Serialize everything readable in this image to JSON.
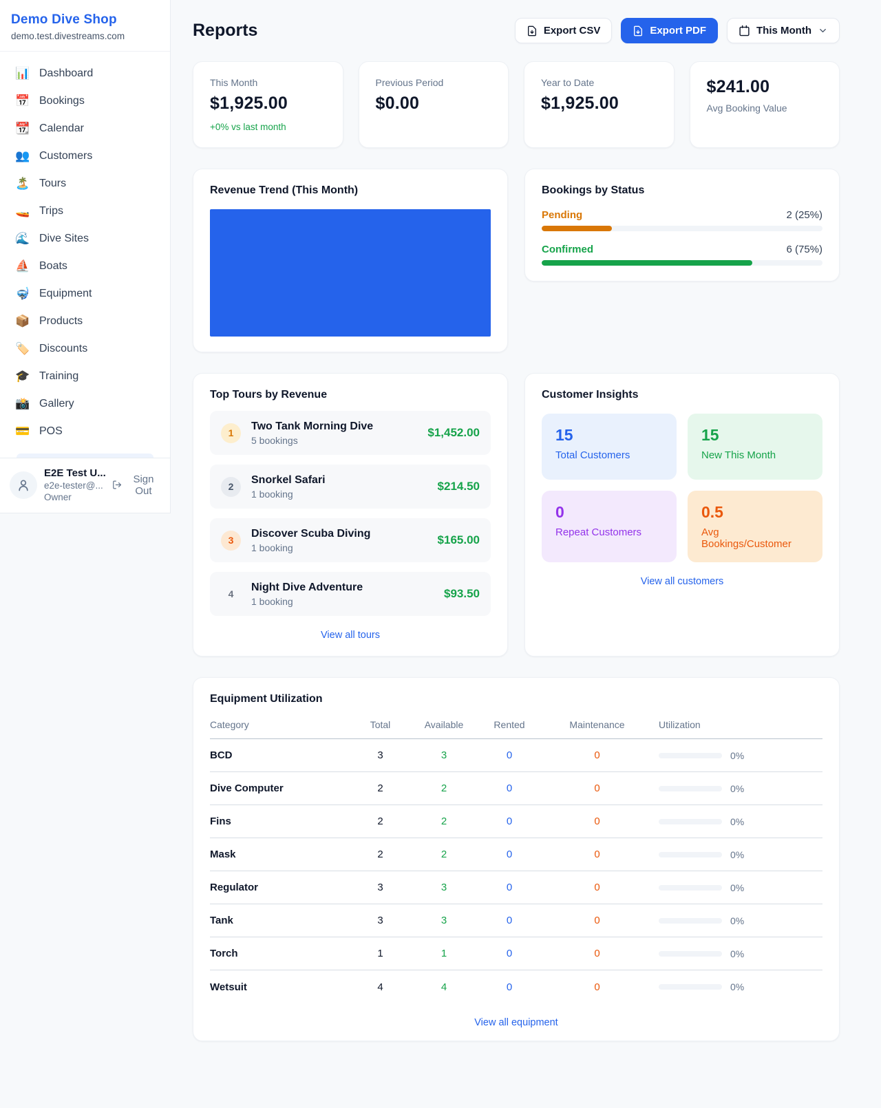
{
  "sidebar": {
    "shop_name": "Demo Dive Shop",
    "shop_domain": "demo.test.divestreams.com",
    "items": [
      {
        "icon": "📊",
        "label": "Dashboard"
      },
      {
        "icon": "📅",
        "label": "Bookings"
      },
      {
        "icon": "📆",
        "label": "Calendar"
      },
      {
        "icon": "👥",
        "label": "Customers"
      },
      {
        "icon": "🏝️",
        "label": "Tours"
      },
      {
        "icon": "🚤",
        "label": "Trips"
      },
      {
        "icon": "🌊",
        "label": "Dive Sites"
      },
      {
        "icon": "⛵",
        "label": "Boats"
      },
      {
        "icon": "🤿",
        "label": "Equipment"
      },
      {
        "icon": "📦",
        "label": "Products"
      },
      {
        "icon": "🏷️",
        "label": "Discounts"
      },
      {
        "icon": "🎓",
        "label": "Training"
      },
      {
        "icon": "📸",
        "label": "Gallery"
      },
      {
        "icon": "💳",
        "label": "POS"
      }
    ],
    "user": {
      "name": "E2E Test U...",
      "email": "e2e-tester@...",
      "role": "Owner",
      "sign_out_label": "Sign Out"
    }
  },
  "header": {
    "title": "Reports",
    "export_csv_label": "Export CSV",
    "export_pdf_label": "Export PDF",
    "period_label": "This Month"
  },
  "stats": [
    {
      "label": "This Month",
      "value": "$1,925.00",
      "delta": "+0% vs last month"
    },
    {
      "label": "Previous Period",
      "value": "$0.00"
    },
    {
      "label": "Year to Date",
      "value": "$1,925.00"
    },
    {
      "label": "Avg Booking Value",
      "value": "$241.00"
    }
  ],
  "revenue_trend": {
    "title": "Revenue Trend (This Month)",
    "bar_color": "#2563eb"
  },
  "bookings_by_status": {
    "title": "Bookings by Status",
    "rows": [
      {
        "label": "Pending",
        "value": "2 (25%)",
        "pct": 25
      },
      {
        "label": "Confirmed",
        "value": "6 (75%)",
        "pct": 75
      }
    ]
  },
  "top_tours": {
    "title": "Top Tours by Revenue",
    "items": [
      {
        "rank": "1",
        "name": "Two Tank Morning Dive",
        "bookings": "5 bookings",
        "revenue": "$1,452.00"
      },
      {
        "rank": "2",
        "name": "Snorkel Safari",
        "bookings": "1 booking",
        "revenue": "$214.50"
      },
      {
        "rank": "3",
        "name": "Discover Scuba Diving",
        "bookings": "1 booking",
        "revenue": "$165.00"
      },
      {
        "rank": "4",
        "name": "Night Dive Adventure",
        "bookings": "1 booking",
        "revenue": "$93.50"
      }
    ],
    "view_all_label": "View all tours"
  },
  "customer_insights": {
    "title": "Customer Insights",
    "tiles": [
      {
        "value": "15",
        "label": "Total Customers"
      },
      {
        "value": "15",
        "label": "New This Month"
      },
      {
        "value": "0",
        "label": "Repeat Customers"
      },
      {
        "value": "0.5",
        "label": "Avg Bookings/Customer"
      }
    ],
    "view_all_label": "View all customers"
  },
  "equipment": {
    "title": "Equipment Utilization",
    "columns": [
      "Category",
      "Total",
      "Available",
      "Rented",
      "Maintenance",
      "Utilization"
    ],
    "rows": [
      {
        "category": "BCD",
        "total": "3",
        "available": "3",
        "rented": "0",
        "maintenance": "0",
        "utilization": "0%",
        "pct": 0
      },
      {
        "category": "Dive Computer",
        "total": "2",
        "available": "2",
        "rented": "0",
        "maintenance": "0",
        "utilization": "0%",
        "pct": 0
      },
      {
        "category": "Fins",
        "total": "2",
        "available": "2",
        "rented": "0",
        "maintenance": "0",
        "utilization": "0%",
        "pct": 0
      },
      {
        "category": "Mask",
        "total": "2",
        "available": "2",
        "rented": "0",
        "maintenance": "0",
        "utilization": "0%",
        "pct": 0
      },
      {
        "category": "Regulator",
        "total": "3",
        "available": "3",
        "rented": "0",
        "maintenance": "0",
        "utilization": "0%",
        "pct": 0
      },
      {
        "category": "Tank",
        "total": "3",
        "available": "3",
        "rented": "0",
        "maintenance": "0",
        "utilization": "0%",
        "pct": 0
      },
      {
        "category": "Torch",
        "total": "1",
        "available": "1",
        "rented": "0",
        "maintenance": "0",
        "utilization": "0%",
        "pct": 0
      },
      {
        "category": "Wetsuit",
        "total": "4",
        "available": "4",
        "rented": "0",
        "maintenance": "0",
        "utilization": "0%",
        "pct": 0
      }
    ],
    "view_all_label": "View all equipment"
  },
  "colors": {
    "accent": "#2563eb",
    "green": "#16a34a",
    "amber": "#d97706",
    "orange": "#ea580c",
    "purple": "#9333ea"
  }
}
